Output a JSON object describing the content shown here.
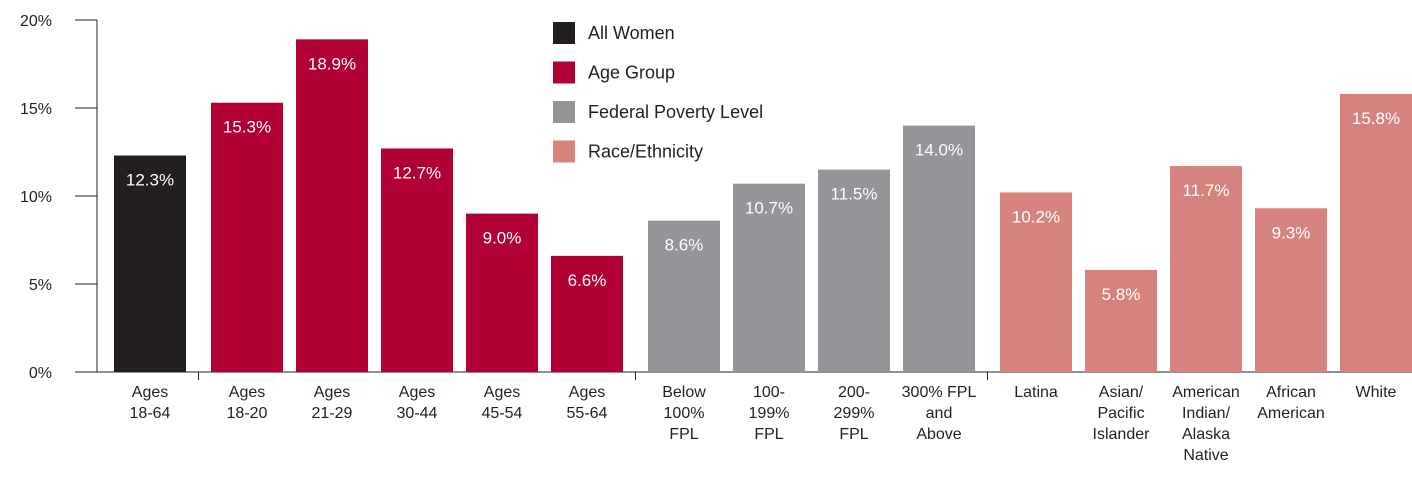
{
  "chart_data": {
    "type": "bar",
    "categories": [
      [
        "Ages",
        "18-64"
      ],
      [
        "Ages",
        "18-20"
      ],
      [
        "Ages",
        "21-29"
      ],
      [
        "Ages",
        "30-44"
      ],
      [
        "Ages",
        "45-54"
      ],
      [
        "Ages",
        "55-64"
      ],
      [
        "Below",
        "100%",
        "FPL"
      ],
      [
        "100-",
        "199%",
        "FPL"
      ],
      [
        "200-",
        "299%",
        "FPL"
      ],
      [
        "300% FPL",
        "and",
        "Above"
      ],
      [
        "Latina"
      ],
      [
        "Asian/",
        "Pacific",
        "Islander"
      ],
      [
        "American",
        "Indian/",
        "Alaska",
        "Native"
      ],
      [
        "African",
        "American"
      ],
      [
        "White"
      ]
    ],
    "series": [
      {
        "name": "All Women",
        "color": "#231f20",
        "values": [
          12.3,
          null,
          null,
          null,
          null,
          null,
          null,
          null,
          null,
          null,
          null,
          null,
          null,
          null,
          null
        ],
        "value_labels": [
          "12.3%",
          null,
          null,
          null,
          null,
          null,
          null,
          null,
          null,
          null,
          null,
          null,
          null,
          null,
          null
        ]
      },
      {
        "name": "Age Group",
        "color": "#b00034",
        "values": [
          null,
          15.3,
          18.9,
          12.7,
          9.0,
          6.6,
          null,
          null,
          null,
          null,
          null,
          null,
          null,
          null,
          null
        ],
        "value_labels": [
          null,
          "15.3%",
          "18.9%",
          "12.7%",
          "9.0%",
          "6.6%",
          null,
          null,
          null,
          null,
          null,
          null,
          null,
          null,
          null
        ]
      },
      {
        "name": "Federal Poverty Level",
        "color": "#939598",
        "values": [
          null,
          null,
          null,
          null,
          null,
          null,
          8.6,
          10.7,
          11.5,
          14.0,
          null,
          null,
          null,
          null,
          null
        ],
        "value_labels": [
          null,
          null,
          null,
          null,
          null,
          null,
          "8.6%",
          "10.7%",
          "11.5%",
          "14.0%",
          null,
          null,
          null,
          null,
          null
        ]
      },
      {
        "name": "Race/Ethnicity",
        "color": "#d6837f",
        "values": [
          null,
          null,
          null,
          null,
          null,
          null,
          null,
          null,
          null,
          null,
          10.2,
          5.8,
          11.7,
          9.3,
          15.8
        ],
        "value_labels": [
          null,
          null,
          null,
          null,
          null,
          null,
          null,
          null,
          null,
          null,
          "10.2%",
          "5.8%",
          "11.7%",
          "9.3%",
          "15.8%"
        ]
      }
    ],
    "ylim": [
      0,
      20
    ],
    "yticks": [
      {
        "value": 0,
        "label": "0%"
      },
      {
        "value": 5,
        "label": "5%"
      },
      {
        "value": 10,
        "label": "10%"
      },
      {
        "value": 15,
        "label": "15%"
      },
      {
        "value": 20,
        "label": "20%"
      }
    ],
    "legend": "top"
  }
}
